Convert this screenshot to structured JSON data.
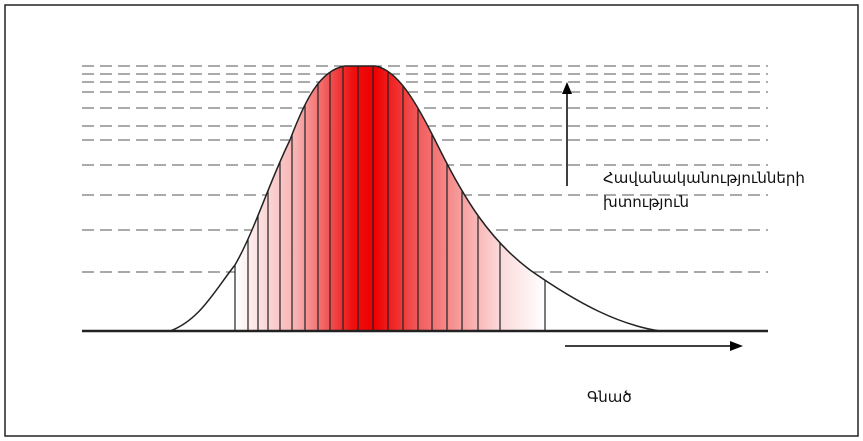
{
  "axis_labels": {
    "y": [
      "Հավանականությունների",
      "խտություն"
    ],
    "x": "Գնած"
  }
}
